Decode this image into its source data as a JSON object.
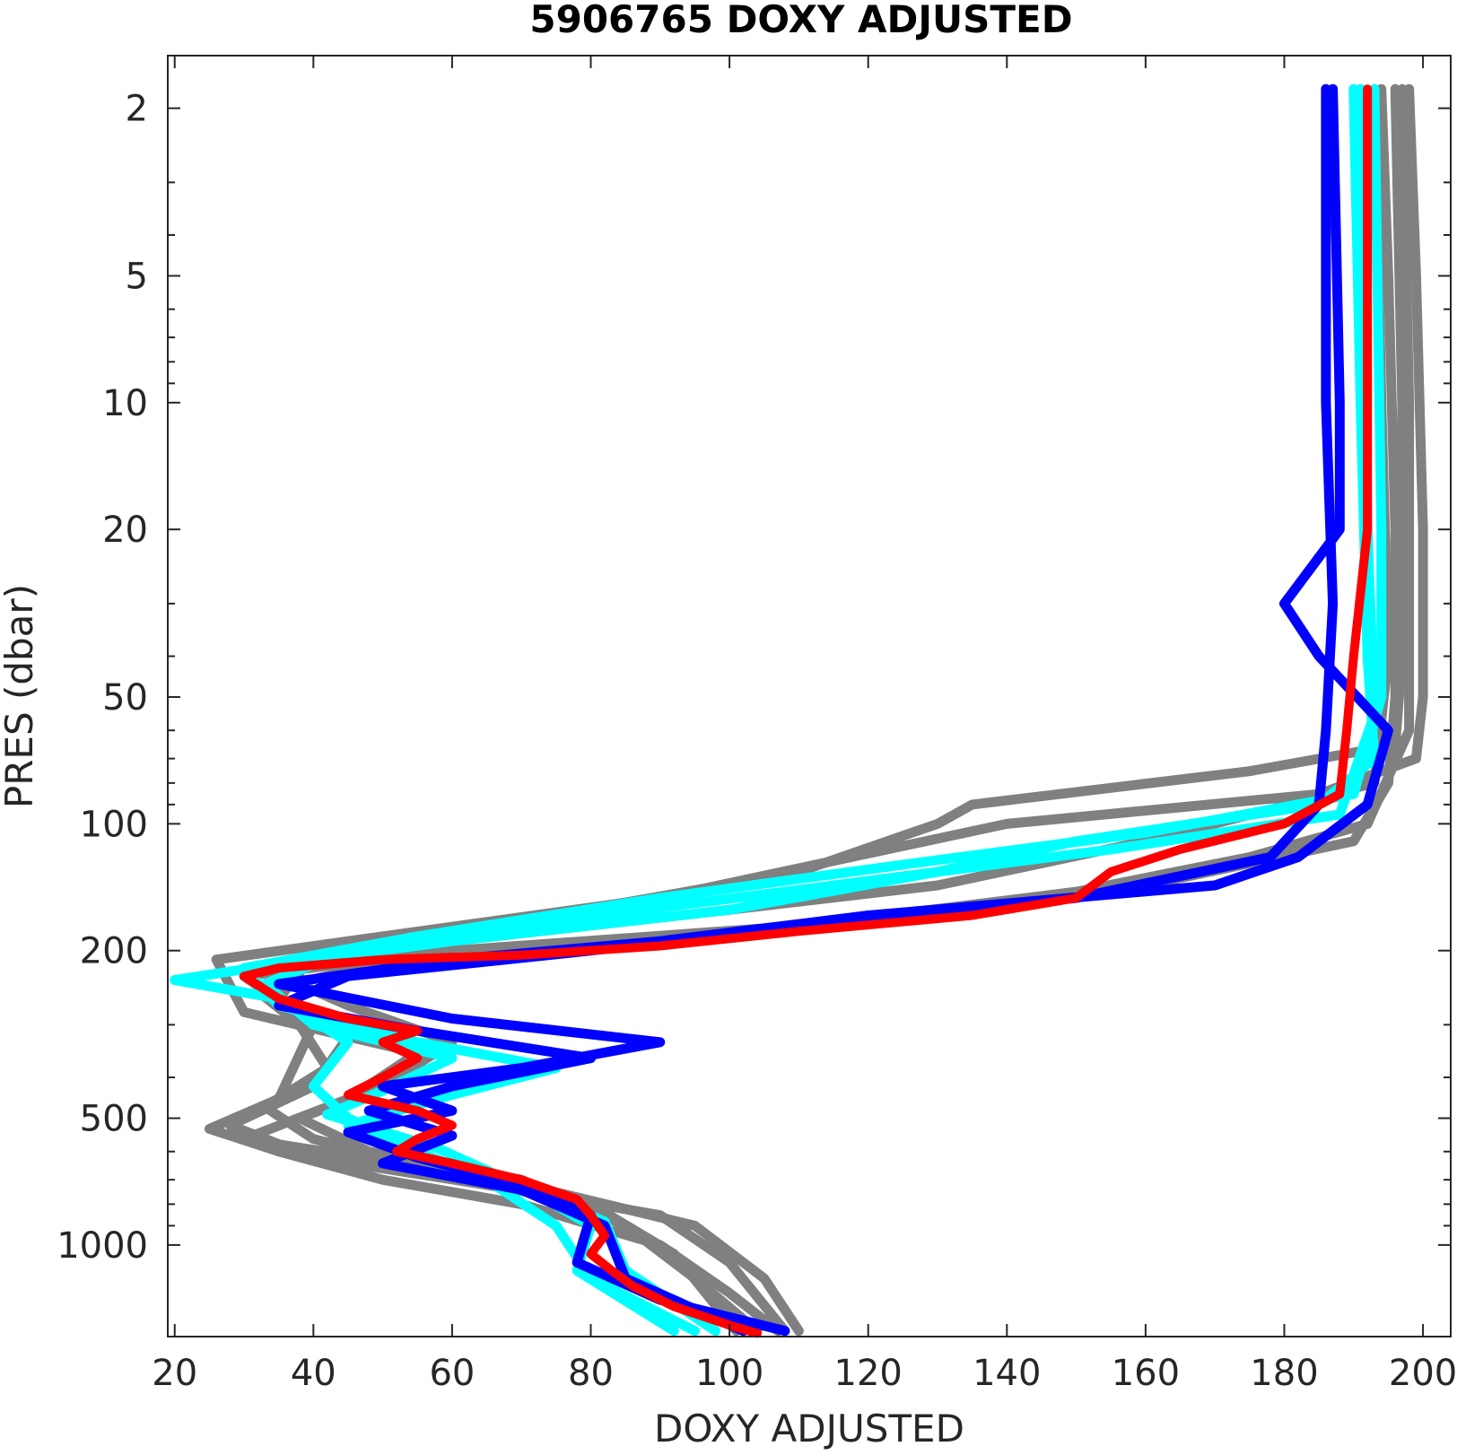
{
  "chart_data": {
    "type": "line",
    "title": "5906765  DOXY ADJUSTED",
    "xlabel": "DOXY ADJUSTED",
    "ylabel": "PRES (dbar)",
    "xlim": [
      19,
      204
    ],
    "ylim": [
      1.5,
      1650
    ],
    "y_scale": "log",
    "y_reversed": true,
    "grid": false,
    "legend": "none",
    "x_ticks": [
      "20",
      "40",
      "60",
      "80",
      "100",
      "120",
      "140",
      "160",
      "180",
      "200"
    ],
    "y_ticks": [
      "2",
      "5",
      "10",
      "20",
      "50",
      "100",
      "200",
      "500",
      "1000"
    ],
    "x_tick_values": [
      20,
      40,
      60,
      80,
      100,
      120,
      140,
      160,
      180,
      200
    ],
    "y_tick_values": [
      2,
      5,
      10,
      20,
      50,
      100,
      200,
      500,
      1000
    ],
    "y_minor_ticks": [
      3,
      4,
      6,
      7,
      8,
      9,
      30,
      40,
      60,
      70,
      80,
      90,
      300,
      400,
      600,
      700,
      800,
      900
    ],
    "colors": {
      "others": "#808080",
      "recent": "#00ffff",
      "previous": "#0000ff",
      "latest": "#ff0000"
    },
    "series": [
      {
        "color": "#808080",
        "points": [
          [
            194,
            1.8
          ],
          [
            195,
            5
          ],
          [
            196,
            20
          ],
          [
            196,
            50
          ],
          [
            195,
            80
          ],
          [
            190,
            110
          ],
          [
            160,
            140
          ],
          [
            120,
            170
          ],
          [
            60,
            200
          ],
          [
            30,
            230
          ],
          [
            40,
            300
          ],
          [
            35,
            450
          ],
          [
            25,
            530
          ],
          [
            35,
            600
          ],
          [
            50,
            700
          ],
          [
            70,
            800
          ],
          [
            90,
            1000
          ],
          [
            100,
            1300
          ],
          [
            107,
            1600
          ]
        ]
      },
      {
        "color": "#808080",
        "points": [
          [
            198,
            1.8
          ],
          [
            199,
            5
          ],
          [
            200,
            20
          ],
          [
            200,
            50
          ],
          [
            199,
            70
          ],
          [
            185,
            85
          ],
          [
            140,
            100
          ],
          [
            90,
            150
          ],
          [
            45,
            190
          ],
          [
            26,
            210
          ],
          [
            30,
            280
          ],
          [
            55,
            350
          ],
          [
            45,
            450
          ],
          [
            30,
            560
          ],
          [
            55,
            650
          ],
          [
            75,
            750
          ],
          [
            95,
            900
          ],
          [
            105,
            1200
          ],
          [
            110,
            1600
          ]
        ]
      },
      {
        "color": "#808080",
        "points": [
          [
            196,
            1.8
          ],
          [
            197,
            10
          ],
          [
            197,
            40
          ],
          [
            196,
            65
          ],
          [
            175,
            75
          ],
          [
            135,
            90
          ],
          [
            130,
            100
          ],
          [
            110,
            130
          ],
          [
            70,
            170
          ],
          [
            40,
            205
          ],
          [
            35,
            260
          ],
          [
            45,
            320
          ],
          [
            40,
            420
          ],
          [
            28,
            520
          ],
          [
            40,
            620
          ],
          [
            65,
            720
          ],
          [
            90,
            850
          ],
          [
            100,
            1100
          ],
          [
            108,
            1600
          ]
        ]
      },
      {
        "color": "#808080",
        "points": [
          [
            193,
            1.8
          ],
          [
            194,
            10
          ],
          [
            195,
            40
          ],
          [
            193,
            80
          ],
          [
            160,
            110
          ],
          [
            130,
            140
          ],
          [
            100,
            160
          ],
          [
            60,
            190
          ],
          [
            34,
            225
          ],
          [
            45,
            270
          ],
          [
            60,
            330
          ],
          [
            50,
            420
          ],
          [
            38,
            500
          ],
          [
            48,
            600
          ],
          [
            70,
            700
          ],
          [
            85,
            900
          ],
          [
            95,
            1200
          ],
          [
            104,
            1600
          ]
        ]
      },
      {
        "color": "#808080",
        "points": [
          [
            197,
            1.8
          ],
          [
            198,
            10
          ],
          [
            198,
            60
          ],
          [
            192,
            100
          ],
          [
            175,
            120
          ],
          [
            150,
            145
          ],
          [
            110,
            175
          ],
          [
            80,
            195
          ],
          [
            50,
            215
          ],
          [
            32,
            250
          ],
          [
            38,
            300
          ],
          [
            42,
            380
          ],
          [
            33,
            470
          ],
          [
            40,
            560
          ],
          [
            60,
            680
          ],
          [
            80,
            800
          ],
          [
            92,
            1050
          ],
          [
            101,
            1600
          ]
        ]
      },
      {
        "color": "#00ffff",
        "points": [
          [
            190,
            1.8
          ],
          [
            191,
            10
          ],
          [
            192,
            40
          ],
          [
            193,
            70
          ],
          [
            185,
            90
          ],
          [
            150,
            110
          ],
          [
            130,
            130
          ],
          [
            100,
            160
          ],
          [
            60,
            190
          ],
          [
            35,
            215
          ],
          [
            20,
            235
          ],
          [
            35,
            260
          ],
          [
            45,
            330
          ],
          [
            40,
            420
          ],
          [
            45,
            500
          ],
          [
            55,
            600
          ],
          [
            65,
            700
          ],
          [
            75,
            900
          ],
          [
            80,
            1200
          ],
          [
            95,
            1600
          ]
        ]
      },
      {
        "color": "#00ffff",
        "points": [
          [
            193,
            1.8
          ],
          [
            194,
            20
          ],
          [
            194,
            50
          ],
          [
            190,
            85
          ],
          [
            160,
            105
          ],
          [
            125,
            125
          ],
          [
            90,
            150
          ],
          [
            55,
            185
          ],
          [
            30,
            220
          ],
          [
            35,
            270
          ],
          [
            55,
            330
          ],
          [
            75,
            380
          ],
          [
            60,
            440
          ],
          [
            45,
            520
          ],
          [
            55,
            620
          ],
          [
            70,
            720
          ],
          [
            80,
            900
          ],
          [
            78,
            1150
          ],
          [
            92,
            1600
          ]
        ]
      },
      {
        "color": "#00ffff",
        "points": [
          [
            191,
            1.8
          ],
          [
            192,
            20
          ],
          [
            193,
            55
          ],
          [
            188,
            95
          ],
          [
            155,
            115
          ],
          [
            115,
            140
          ],
          [
            75,
            170
          ],
          [
            45,
            200
          ],
          [
            33,
            240
          ],
          [
            40,
            300
          ],
          [
            60,
            360
          ],
          [
            50,
            430
          ],
          [
            42,
            490
          ],
          [
            58,
            590
          ],
          [
            68,
            700
          ],
          [
            82,
            880
          ],
          [
            85,
            1150
          ],
          [
            98,
            1600
          ]
        ]
      },
      {
        "color": "#0000ff",
        "points": [
          [
            187,
            1.8
          ],
          [
            188,
            10
          ],
          [
            188,
            20
          ],
          [
            180,
            30
          ],
          [
            185,
            40
          ],
          [
            195,
            60
          ],
          [
            192,
            90
          ],
          [
            182,
            120
          ],
          [
            170,
            140
          ],
          [
            120,
            165
          ],
          [
            90,
            190
          ],
          [
            60,
            210
          ],
          [
            35,
            240
          ],
          [
            60,
            290
          ],
          [
            90,
            330
          ],
          [
            70,
            380
          ],
          [
            50,
            420
          ],
          [
            60,
            480
          ],
          [
            45,
            540
          ],
          [
            55,
            620
          ],
          [
            70,
            720
          ],
          [
            80,
            850
          ],
          [
            78,
            1100
          ],
          [
            90,
            1350
          ],
          [
            108,
            1600
          ]
        ]
      },
      {
        "color": "#0000ff",
        "points": [
          [
            186,
            1.8
          ],
          [
            186,
            10
          ],
          [
            187,
            30
          ],
          [
            186,
            60
          ],
          [
            185,
            90
          ],
          [
            178,
            120
          ],
          [
            150,
            150
          ],
          [
            110,
            175
          ],
          [
            80,
            200
          ],
          [
            45,
            230
          ],
          [
            35,
            270
          ],
          [
            55,
            310
          ],
          [
            80,
            360
          ],
          [
            60,
            420
          ],
          [
            48,
            480
          ],
          [
            60,
            550
          ],
          [
            50,
            640
          ],
          [
            70,
            740
          ],
          [
            82,
            900
          ],
          [
            85,
            1200
          ],
          [
            102,
            1600
          ]
        ]
      },
      {
        "color": "#ff0000",
        "points": [
          [
            192,
            1.8
          ],
          [
            192,
            5
          ],
          [
            192,
            10
          ],
          [
            192,
            20
          ],
          [
            190,
            40
          ],
          [
            189,
            60
          ],
          [
            188,
            85
          ],
          [
            180,
            100
          ],
          [
            165,
            115
          ],
          [
            155,
            130
          ],
          [
            150,
            150
          ],
          [
            135,
            165
          ],
          [
            110,
            180
          ],
          [
            90,
            195
          ],
          [
            70,
            205
          ],
          [
            50,
            210
          ],
          [
            35,
            220
          ],
          [
            30,
            230
          ],
          [
            35,
            260
          ],
          [
            45,
            290
          ],
          [
            55,
            310
          ],
          [
            50,
            330
          ],
          [
            55,
            360
          ],
          [
            50,
            400
          ],
          [
            45,
            440
          ],
          [
            55,
            480
          ],
          [
            60,
            520
          ],
          [
            55,
            560
          ],
          [
            52,
            600
          ],
          [
            60,
            640
          ],
          [
            70,
            700
          ],
          [
            78,
            780
          ],
          [
            80,
            850
          ],
          [
            82,
            950
          ],
          [
            80,
            1050
          ],
          [
            83,
            1150
          ],
          [
            86,
            1250
          ],
          [
            92,
            1400
          ],
          [
            100,
            1550
          ],
          [
            104,
            1620
          ]
        ]
      }
    ]
  }
}
